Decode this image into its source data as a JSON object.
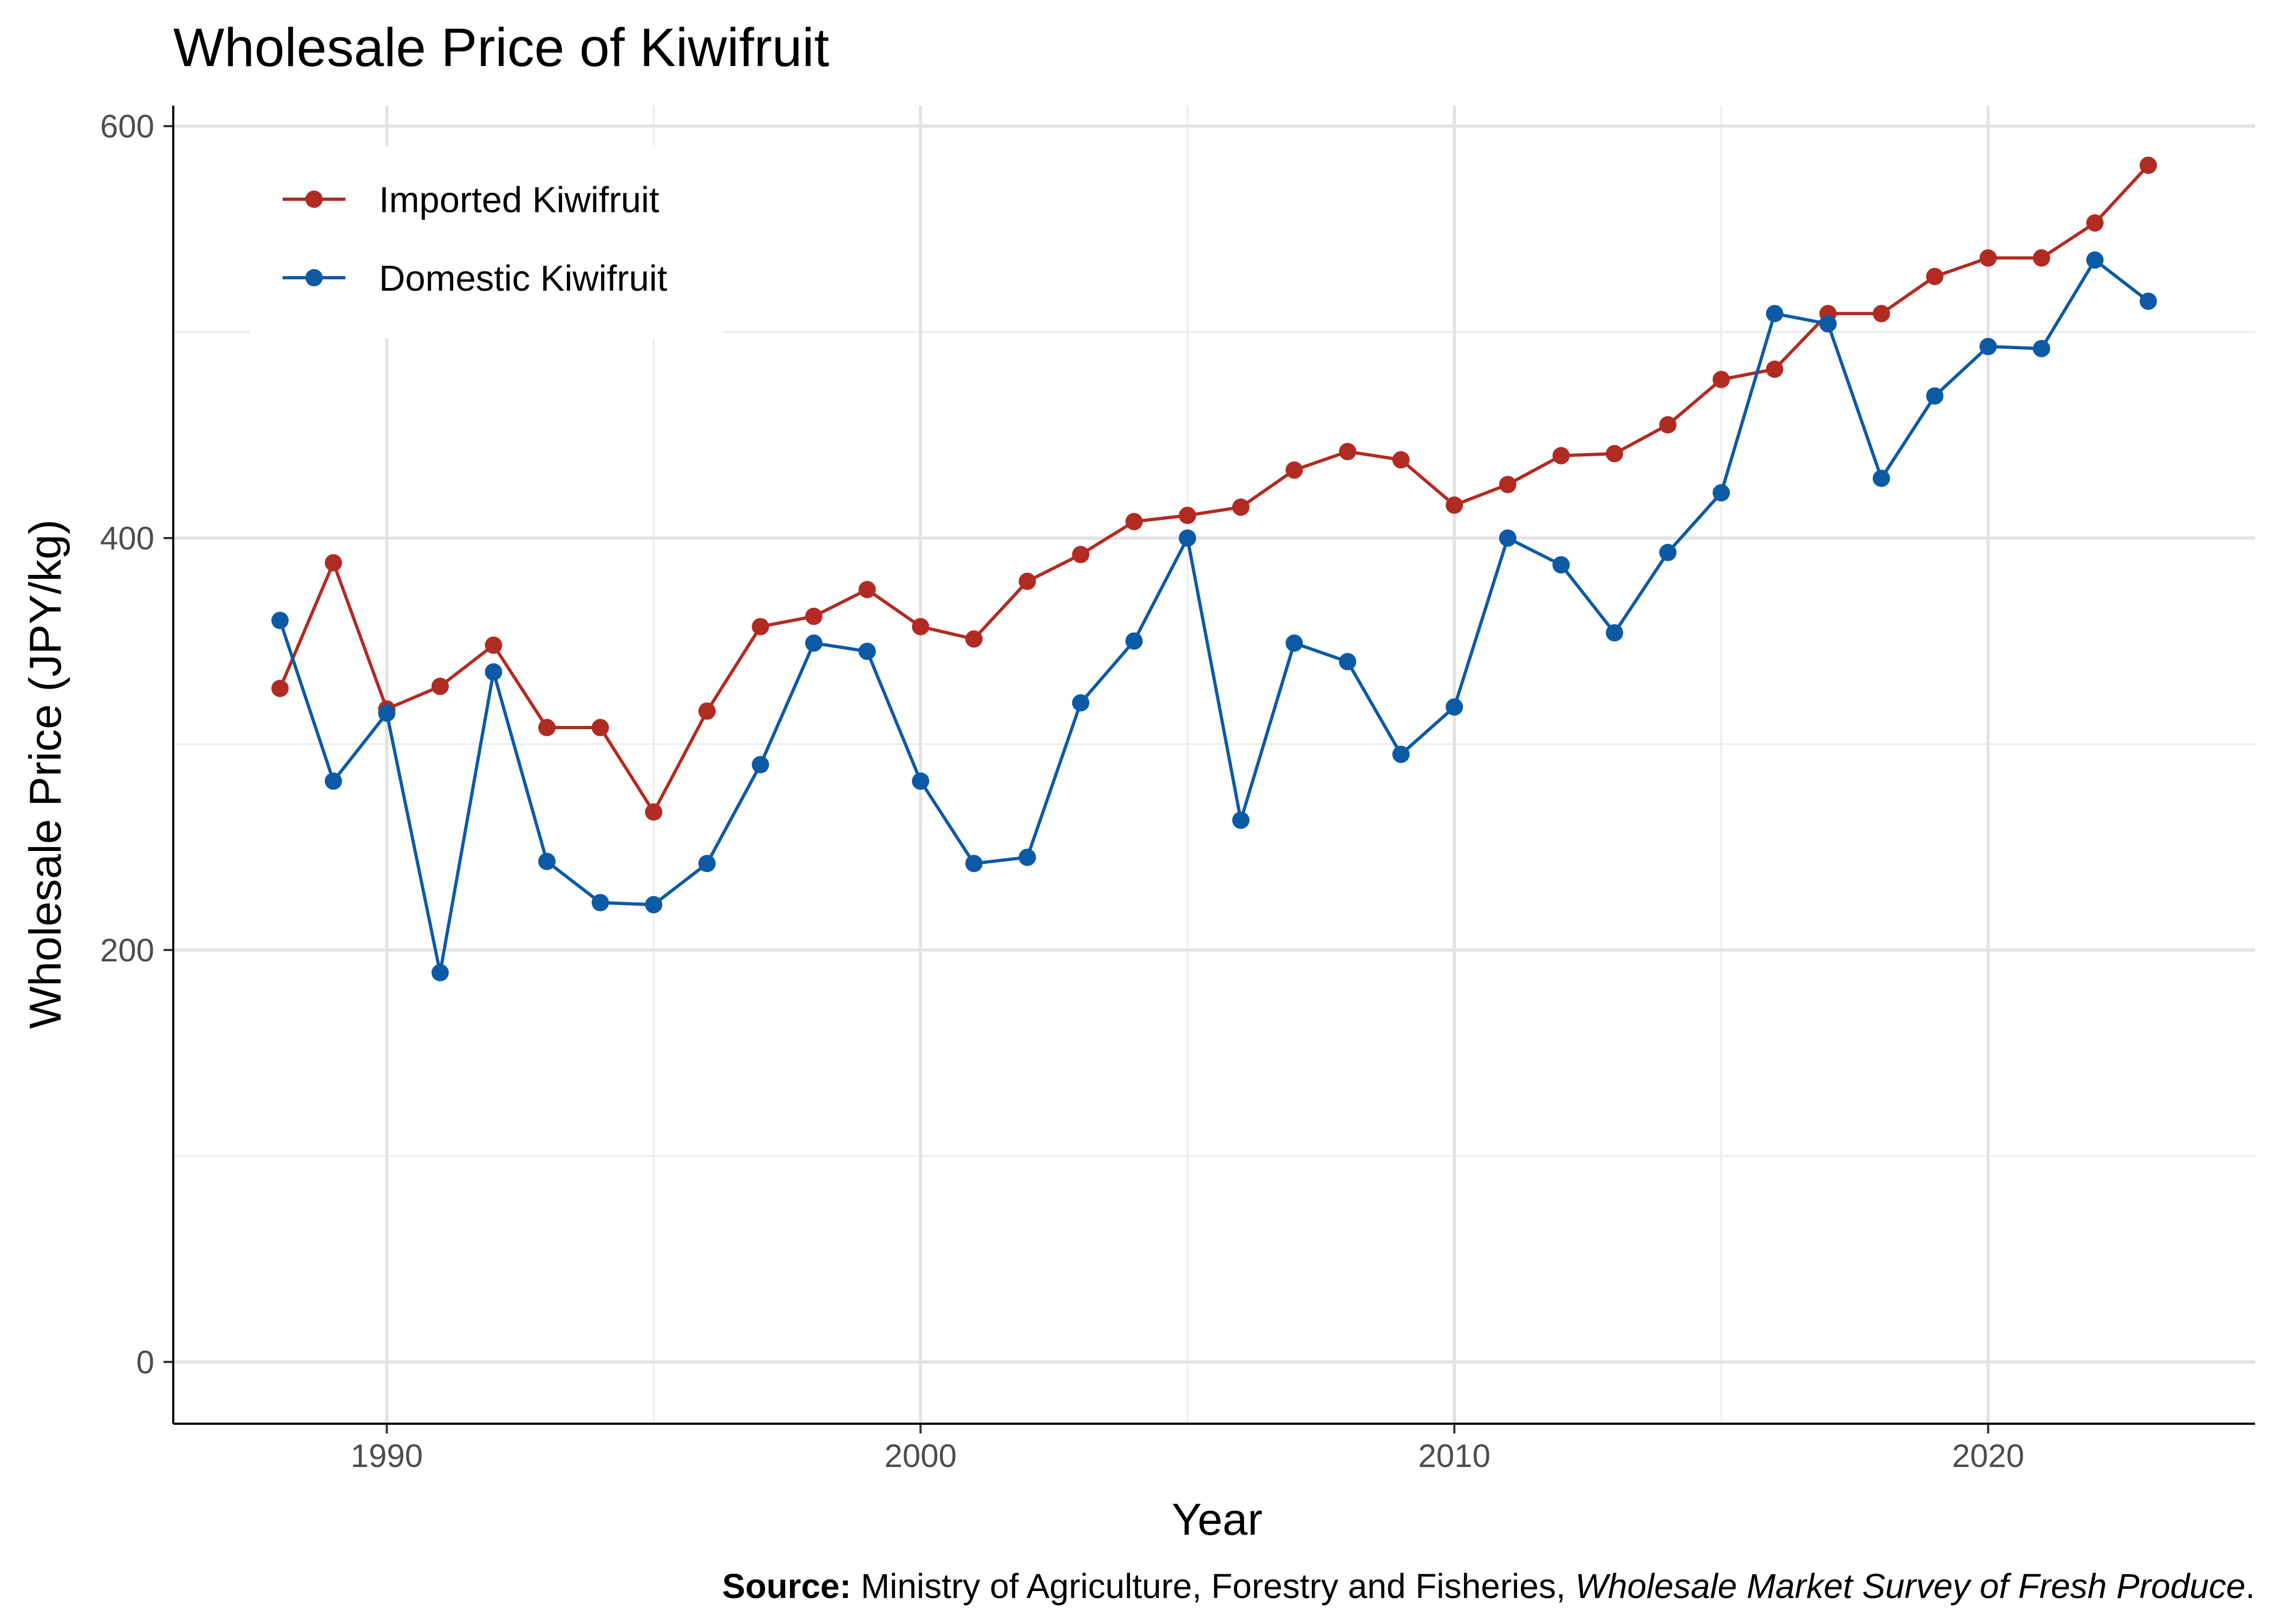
{
  "chart_data": {
    "type": "line",
    "title": "Wholesale Price of Kiwifruit",
    "xlabel": "Year",
    "ylabel": "Wholesale Price (JPY/kg)",
    "xlim": [
      1986,
      2025
    ],
    "ylim": [
      -30,
      610
    ],
    "x_ticks": [
      1990,
      2000,
      2010,
      2020
    ],
    "y_ticks": [
      0,
      200,
      400,
      600
    ],
    "grid": true,
    "legend_position": "top-left",
    "x": [
      1988,
      1989,
      1990,
      1991,
      1992,
      1993,
      1994,
      1995,
      1996,
      1997,
      1998,
      1999,
      2000,
      2001,
      2002,
      2003,
      2004,
      2005,
      2006,
      2007,
      2008,
      2009,
      2010,
      2011,
      2012,
      2013,
      2014,
      2015,
      2016,
      2017,
      2018,
      2019,
      2020,
      2021,
      2022,
      2023
    ],
    "series": [
      {
        "name": "Imported Kiwifruit",
        "color": "#b22b22",
        "values": [
          327,
          388,
          317,
          328,
          348,
          308,
          308,
          267,
          316,
          357,
          362,
          375,
          357,
          351,
          379,
          392,
          408,
          411,
          415,
          433,
          442,
          438,
          416,
          426,
          440,
          441,
          455,
          477,
          482,
          509,
          509,
          527,
          536,
          536,
          553,
          581
        ]
      },
      {
        "name": "Domestic Kiwifruit",
        "color": "#0c5aa6",
        "values": [
          360,
          282,
          315,
          189,
          335,
          243,
          223,
          222,
          242,
          290,
          349,
          345,
          282,
          242,
          245,
          320,
          350,
          400,
          263,
          349,
          340,
          295,
          318,
          400,
          387,
          354,
          393,
          422,
          509,
          504,
          429,
          469,
          493,
          492,
          535,
          515
        ]
      }
    ],
    "source": {
      "label": "Source:",
      "text": "Ministry of Agriculture, Forestry and Fisheries,",
      "publication": "Wholesale Market Survey of Fresh Produce",
      "end": "."
    }
  }
}
